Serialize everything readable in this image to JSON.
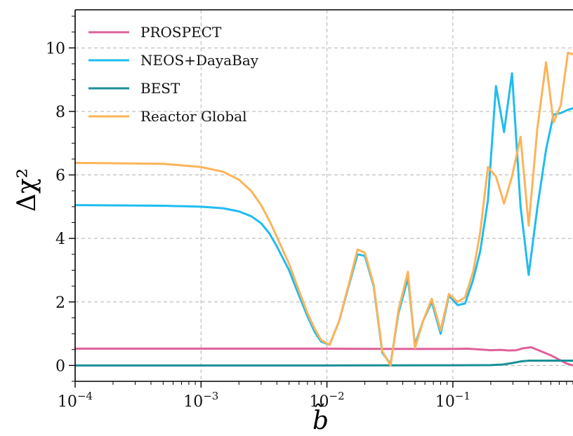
{
  "chart_data": {
    "type": "line",
    "xlabel": "b̃",
    "ylabel": "Δχ²",
    "xscale": "log",
    "xlim": [
      0.0001,
      0.9
    ],
    "ylim": [
      -0.5,
      11.2
    ],
    "grid": true,
    "legend_position": "top-left",
    "x_ticks": [
      {
        "value": 0.0001,
        "base": "10",
        "exp": "−4"
      },
      {
        "value": 0.001,
        "base": "10",
        "exp": "−3"
      },
      {
        "value": 0.01,
        "base": "10",
        "exp": "−2"
      },
      {
        "value": 0.1,
        "base": "10",
        "exp": "−1"
      }
    ],
    "y_ticks": [
      0,
      2,
      4,
      6,
      8,
      10
    ],
    "series": [
      {
        "name": "PROSPECT",
        "color": "#e0609a",
        "points": [
          [
            0.0001,
            0.53
          ],
          [
            0.001,
            0.53
          ],
          [
            0.01,
            0.53
          ],
          [
            0.03,
            0.52
          ],
          [
            0.1,
            0.52
          ],
          [
            0.13,
            0.53
          ],
          [
            0.17,
            0.5
          ],
          [
            0.2,
            0.48
          ],
          [
            0.24,
            0.49
          ],
          [
            0.28,
            0.47
          ],
          [
            0.32,
            0.48
          ],
          [
            0.36,
            0.54
          ],
          [
            0.42,
            0.57
          ],
          [
            0.5,
            0.45
          ],
          [
            0.6,
            0.32
          ],
          [
            0.7,
            0.18
          ],
          [
            0.8,
            0.06
          ],
          [
            0.9,
            0.0
          ]
        ]
      },
      {
        "name": "NEOS+DayaBay",
        "color": "#1fbcf0",
        "points": [
          [
            0.0001,
            5.05
          ],
          [
            0.0005,
            5.03
          ],
          [
            0.001,
            5.0
          ],
          [
            0.0015,
            4.95
          ],
          [
            0.002,
            4.85
          ],
          [
            0.0025,
            4.7
          ],
          [
            0.003,
            4.48
          ],
          [
            0.0035,
            4.15
          ],
          [
            0.004,
            3.75
          ],
          [
            0.005,
            3.0
          ],
          [
            0.006,
            2.2
          ],
          [
            0.007,
            1.55
          ],
          [
            0.008,
            1.05
          ],
          [
            0.009,
            0.75
          ],
          [
            0.0105,
            0.65
          ],
          [
            0.0125,
            1.4
          ],
          [
            0.015,
            2.55
          ],
          [
            0.0175,
            3.5
          ],
          [
            0.02,
            3.45
          ],
          [
            0.0235,
            2.5
          ],
          [
            0.0275,
            0.4
          ],
          [
            0.032,
            0.05
          ],
          [
            0.037,
            1.65
          ],
          [
            0.044,
            2.75
          ],
          [
            0.05,
            0.65
          ],
          [
            0.058,
            1.4
          ],
          [
            0.068,
            2.0
          ],
          [
            0.08,
            1.0
          ],
          [
            0.093,
            2.2
          ],
          [
            0.109,
            1.9
          ],
          [
            0.125,
            1.95
          ],
          [
            0.145,
            2.7
          ],
          [
            0.165,
            3.6
          ],
          [
            0.19,
            5.2
          ],
          [
            0.22,
            8.8
          ],
          [
            0.255,
            7.35
          ],
          [
            0.295,
            9.2
          ],
          [
            0.345,
            5.0
          ],
          [
            0.4,
            2.85
          ],
          [
            0.47,
            5.0
          ],
          [
            0.55,
            6.8
          ],
          [
            0.63,
            7.9
          ],
          [
            0.72,
            7.95
          ],
          [
            0.82,
            8.05
          ],
          [
            0.9,
            8.1
          ]
        ]
      },
      {
        "name": "BEST",
        "color": "#1a8f98",
        "points": [
          [
            0.0001,
            0.0
          ],
          [
            0.01,
            0.0
          ],
          [
            0.1,
            0.005
          ],
          [
            0.2,
            0.01
          ],
          [
            0.25,
            0.03
          ],
          [
            0.3,
            0.08
          ],
          [
            0.35,
            0.13
          ],
          [
            0.4,
            0.15
          ],
          [
            0.5,
            0.15
          ],
          [
            0.6,
            0.15
          ],
          [
            0.7,
            0.15
          ],
          [
            0.8,
            0.15
          ],
          [
            0.9,
            0.15
          ]
        ]
      },
      {
        "name": "Reactor Global",
        "color": "#fbb45a",
        "points": [
          [
            0.0001,
            6.38
          ],
          [
            0.0005,
            6.35
          ],
          [
            0.001,
            6.25
          ],
          [
            0.0015,
            6.1
          ],
          [
            0.002,
            5.85
          ],
          [
            0.0025,
            5.5
          ],
          [
            0.003,
            5.05
          ],
          [
            0.0035,
            4.55
          ],
          [
            0.004,
            4.05
          ],
          [
            0.005,
            3.2
          ],
          [
            0.006,
            2.35
          ],
          [
            0.007,
            1.65
          ],
          [
            0.008,
            1.15
          ],
          [
            0.009,
            0.8
          ],
          [
            0.0105,
            0.65
          ],
          [
            0.0125,
            1.4
          ],
          [
            0.015,
            2.6
          ],
          [
            0.0175,
            3.65
          ],
          [
            0.02,
            3.55
          ],
          [
            0.0235,
            2.55
          ],
          [
            0.0275,
            0.45
          ],
          [
            0.032,
            0.0
          ],
          [
            0.037,
            1.75
          ],
          [
            0.044,
            2.95
          ],
          [
            0.05,
            0.55
          ],
          [
            0.058,
            1.4
          ],
          [
            0.068,
            2.1
          ],
          [
            0.08,
            1.1
          ],
          [
            0.093,
            2.25
          ],
          [
            0.109,
            2.0
          ],
          [
            0.125,
            2.15
          ],
          [
            0.145,
            2.95
          ],
          [
            0.165,
            4.2
          ],
          [
            0.19,
            6.25
          ],
          [
            0.22,
            5.95
          ],
          [
            0.255,
            5.1
          ],
          [
            0.295,
            5.95
          ],
          [
            0.345,
            7.2
          ],
          [
            0.4,
            4.4
          ],
          [
            0.47,
            7.5
          ],
          [
            0.55,
            9.55
          ],
          [
            0.63,
            7.65
          ],
          [
            0.72,
            8.2
          ],
          [
            0.82,
            9.85
          ],
          [
            0.9,
            9.8
          ]
        ]
      }
    ]
  }
}
